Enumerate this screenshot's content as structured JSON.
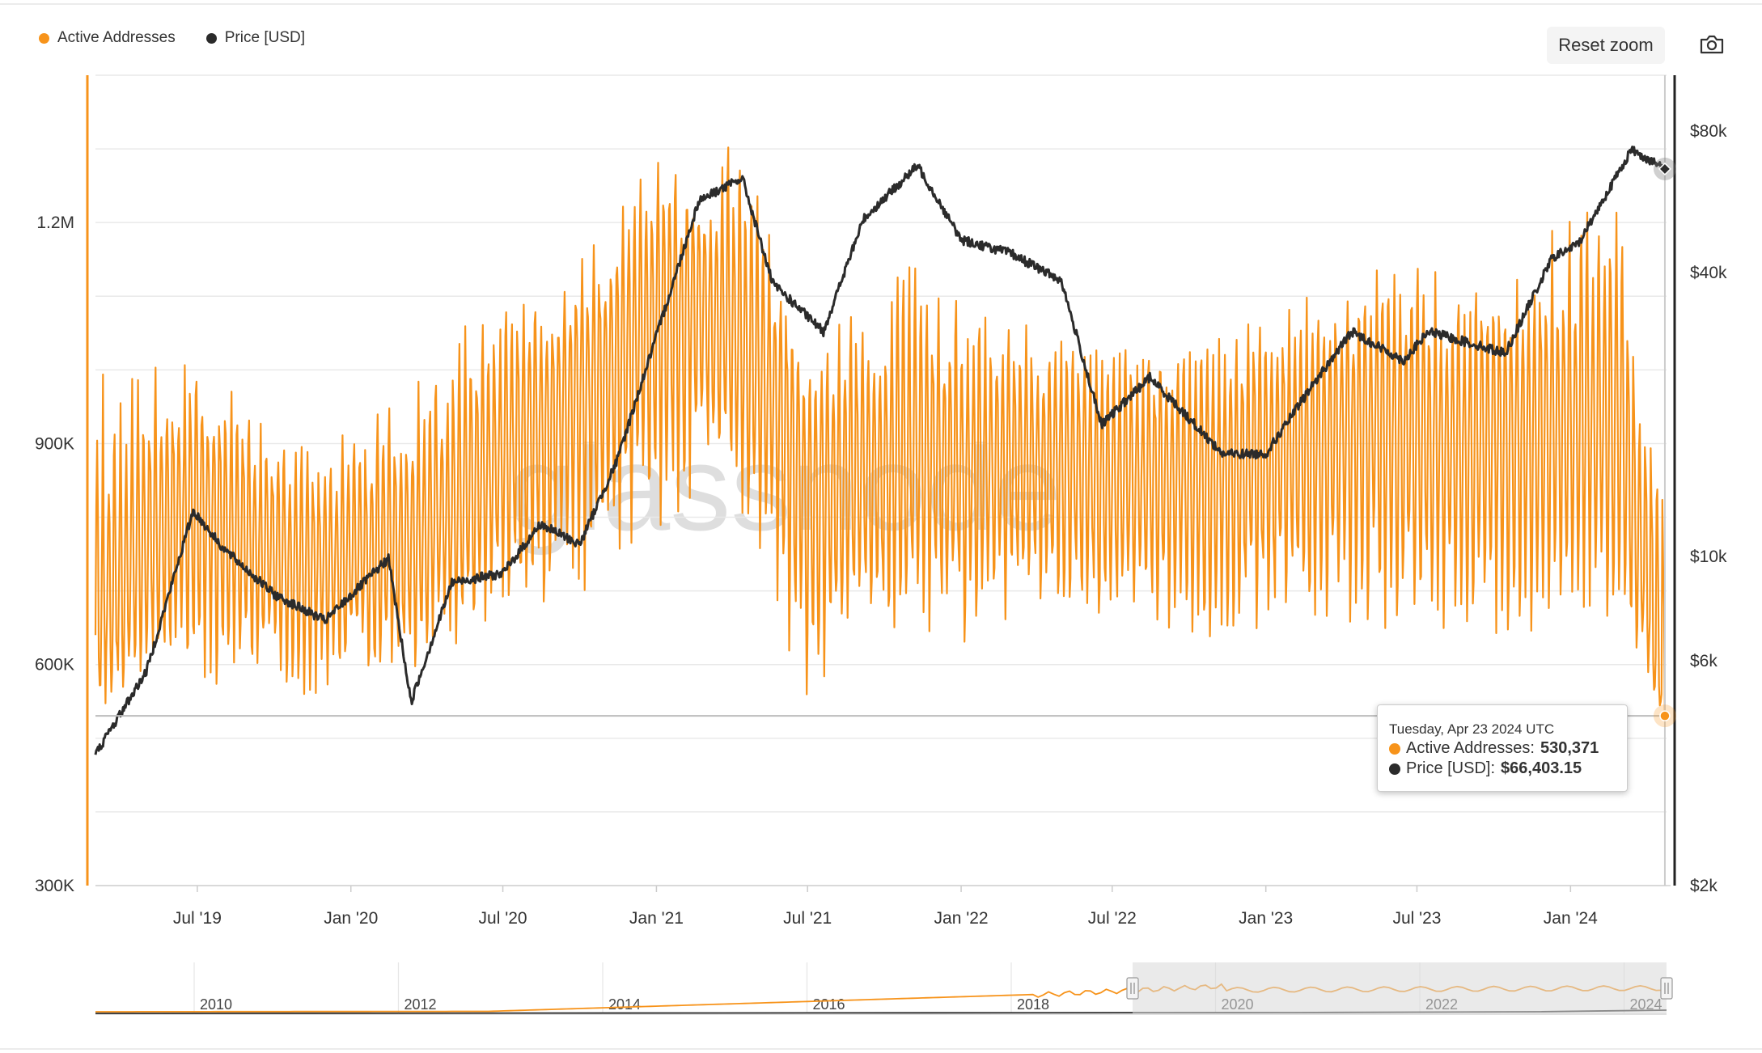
{
  "legend": {
    "series_a": "Active Addresses",
    "series_b": "Price [USD]"
  },
  "toolbar": {
    "reset_zoom": "Reset zoom"
  },
  "watermark": "glassnode",
  "tooltip": {
    "date": "Tuesday, Apr 23 2024 UTC",
    "row_a_label": "Active Addresses:",
    "row_a_value": "530,371",
    "row_b_label": "Price [USD]:",
    "row_b_value": "$66,403.15"
  },
  "colors": {
    "active_addresses": "#f7931a",
    "price": "#2b2b2b",
    "grid": "#e9e9e9",
    "navigator_mask": "#d8d8d8"
  },
  "navigator": {
    "year_labels": [
      "2010",
      "2012",
      "2014",
      "2016",
      "2018",
      "2020",
      "2022",
      "2024"
    ]
  },
  "chart_data": {
    "type": "line",
    "x_tick_labels": [
      "Jul '19",
      "Jan '20",
      "Jul '20",
      "Jan '21",
      "Jul '21",
      "Jan '22",
      "Jul '22",
      "Jan '23",
      "Jul '23",
      "Jan '24"
    ],
    "x_range": [
      "2019-03-01",
      "2024-04-25"
    ],
    "left_axis": {
      "ticks": [
        "1.2M",
        "900K",
        "600K",
        "300K"
      ],
      "tick_values": [
        1200000,
        900000,
        600000,
        300000
      ],
      "range": [
        300000,
        1400000
      ]
    },
    "right_axis": {
      "scale": "log",
      "ticks": [
        "$80k",
        "$40k",
        "$10k",
        "$6k",
        "$2k"
      ],
      "tick_values": [
        80000,
        40000,
        10000,
        6000,
        2000
      ],
      "range": [
        2000,
        105000
      ]
    },
    "grid": true,
    "legend_position": "top-left",
    "series": [
      {
        "name": "Active Addresses",
        "axis": "left",
        "color": "#f7931a",
        "x": [
          "2019-03-01",
          "2019-05-01",
          "2019-07-01",
          "2019-09-01",
          "2019-11-01",
          "2020-01-01",
          "2020-03-01",
          "2020-05-01",
          "2020-07-01",
          "2020-09-01",
          "2020-11-01",
          "2021-01-01",
          "2021-02-15",
          "2021-04-01",
          "2021-05-20",
          "2021-07-01",
          "2021-09-01",
          "2021-11-01",
          "2022-01-01",
          "2022-03-01",
          "2022-05-01",
          "2022-07-01",
          "2022-09-01",
          "2022-11-01",
          "2023-01-01",
          "2023-03-01",
          "2023-05-01",
          "2023-07-01",
          "2023-09-01",
          "2023-11-01",
          "2024-01-01",
          "2024-03-01",
          "2024-04-23"
        ],
        "values": [
          640000,
          760000,
          830000,
          770000,
          730000,
          740000,
          760000,
          800000,
          890000,
          950000,
          1000000,
          1080000,
          1100000,
          1050000,
          960000,
          840000,
          850000,
          880000,
          860000,
          870000,
          880000,
          850000,
          860000,
          860000,
          880000,
          900000,
          930000,
          910000,
          900000,
          920000,
          930000,
          920000,
          530371
        ],
        "peak_values": [
          1000000,
          1020000,
          1010000,
          960000,
          900000,
          930000,
          960000,
          1060000,
          1090000,
          1120000,
          1200000,
          1330000,
          1240000,
          1330000,
          1210000,
          1000000,
          1110000,
          1170000,
          1100000,
          1080000,
          1050000,
          1040000,
          1040000,
          1050000,
          1100000,
          1110000,
          1150000,
          1160000,
          1130000,
          1140000,
          1230000,
          1230000,
          900000
        ],
        "trough_values": [
          540000,
          560000,
          560000,
          550000,
          540000,
          580000,
          560000,
          620000,
          630000,
          660000,
          700000,
          740000,
          820000,
          820000,
          700000,
          500000,
          630000,
          650000,
          620000,
          660000,
          660000,
          640000,
          640000,
          620000,
          630000,
          650000,
          650000,
          620000,
          640000,
          630000,
          650000,
          650000,
          520000
        ]
      },
      {
        "name": "Price [USD]",
        "axis": "right",
        "color": "#2b2b2b",
        "x": [
          "2019-03-01",
          "2019-05-01",
          "2019-06-26",
          "2019-08-01",
          "2019-10-01",
          "2019-12-01",
          "2020-02-15",
          "2020-03-13",
          "2020-05-01",
          "2020-07-01",
          "2020-08-15",
          "2020-10-01",
          "2020-11-15",
          "2020-12-31",
          "2021-02-21",
          "2021-04-14",
          "2021-05-20",
          "2021-07-20",
          "2021-09-06",
          "2021-11-10",
          "2022-01-01",
          "2022-03-01",
          "2022-05-01",
          "2022-06-18",
          "2022-08-15",
          "2022-11-10",
          "2023-01-01",
          "2023-03-01",
          "2023-04-14",
          "2023-06-15",
          "2023-07-15",
          "2023-10-15",
          "2023-12-10",
          "2024-01-10",
          "2024-03-14",
          "2024-04-23"
        ],
        "values": [
          3800,
          5700,
          12500,
          10400,
          8300,
          7300,
          9900,
          4900,
          8800,
          9200,
          11700,
          10600,
          16000,
          29000,
          57000,
          63500,
          38000,
          30000,
          52000,
          67500,
          47000,
          44000,
          38500,
          19000,
          24000,
          16500,
          16500,
          23500,
          30000,
          26000,
          30000,
          27000,
          43000,
          46000,
          73000,
          66403.15
        ]
      }
    ],
    "annotation": {
      "date": "2024-04-23",
      "active_addresses": 530371,
      "price_usd": 66403.15
    }
  }
}
